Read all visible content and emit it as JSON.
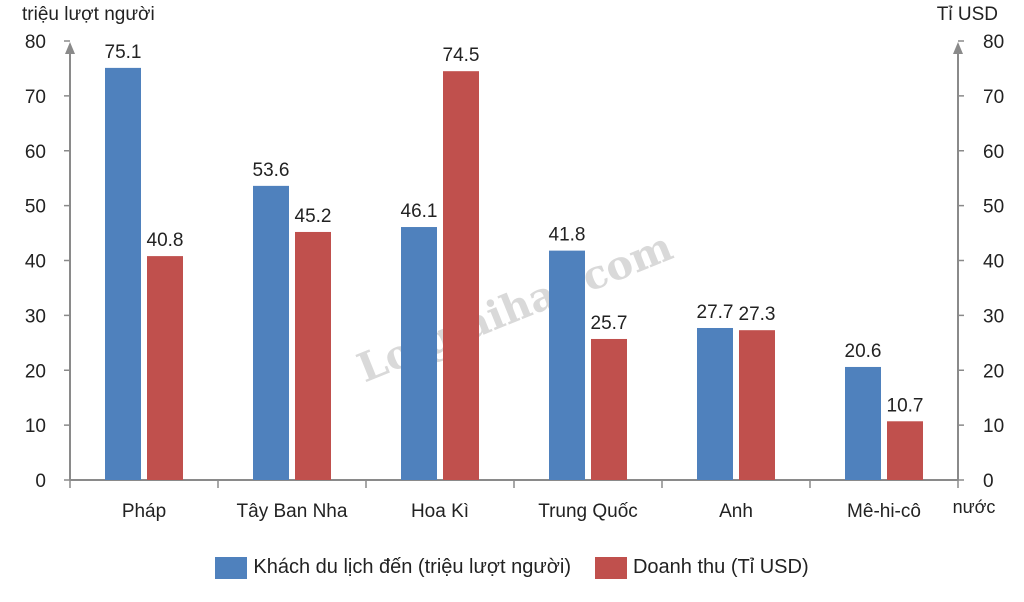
{
  "chart_data": {
    "type": "bar",
    "ylabel_left": "triệu lượt người",
    "ylabel_right": "Tỉ USD",
    "xlabel": "nước",
    "categories": [
      "Pháp",
      "Tây Ban  Nha",
      "Hoa Kì",
      "Trung Quốc",
      "Anh",
      "Mê-hi-cô"
    ],
    "series": [
      {
        "name": "Khách du lịch đến (triệu lượt người)",
        "axis": "left",
        "color": "#4f81bd",
        "values": [
          75.1,
          53.6,
          46.1,
          41.8,
          27.7,
          20.6
        ]
      },
      {
        "name": "Doanh thu (Tỉ USD)",
        "axis": "right",
        "color": "#c0504d",
        "values": [
          40.8,
          45.2,
          74.5,
          25.7,
          27.3,
          10.7
        ]
      }
    ],
    "ylim_left": [
      0,
      80
    ],
    "ylim_right": [
      0,
      80
    ],
    "yticks": [
      0,
      10,
      20,
      30,
      40,
      50,
      60,
      70,
      80
    ],
    "grid": false,
    "legend_position": "bottom",
    "watermark": "Loigiaihay.com"
  }
}
